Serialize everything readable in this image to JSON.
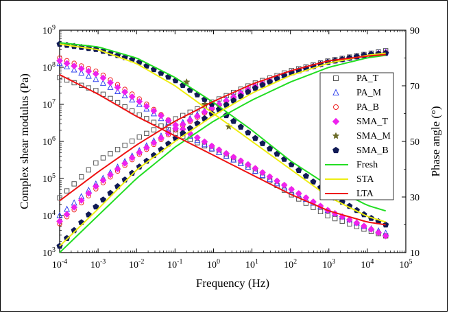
{
  "chart_data": {
    "type": "scatter",
    "title": "",
    "xlabel": "Frequency (Hz)",
    "ylabel_left": "Complex shear modulus (Pa)",
    "ylabel_right": "Phase angle (°)",
    "x_scale": "log",
    "y_left_scale": "log",
    "xlim": [
      0.0001,
      100000
    ],
    "ylim_left": [
      1000,
      1000000000
    ],
    "ylim_right": [
      10,
      90
    ],
    "x_ticks": [
      {
        "base": "10",
        "exp": "-4"
      },
      {
        "base": "10",
        "exp": "-3"
      },
      {
        "base": "10",
        "exp": "-2"
      },
      {
        "base": "10",
        "exp": "-1"
      },
      {
        "base": "10",
        "exp": "0"
      },
      {
        "base": "10",
        "exp": "1"
      },
      {
        "base": "10",
        "exp": "2"
      },
      {
        "base": "10",
        "exp": "3"
      },
      {
        "base": "10",
        "exp": "4"
      },
      {
        "base": "10",
        "exp": "5"
      }
    ],
    "y_left_ticks": [
      {
        "base": "10",
        "exp": "3"
      },
      {
        "base": "10",
        "exp": "4"
      },
      {
        "base": "10",
        "exp": "5"
      },
      {
        "base": "10",
        "exp": "6"
      },
      {
        "base": "10",
        "exp": "7"
      },
      {
        "base": "10",
        "exp": "8"
      },
      {
        "base": "10",
        "exp": "9"
      }
    ],
    "y_right_ticks": [
      "10",
      "30",
      "50",
      "70",
      "90"
    ],
    "grid": false,
    "legend_position": "right-inside",
    "series": [
      {
        "name": "PA_T",
        "marker": "square-open",
        "color": "#555555",
        "modulus": {
          "x": [
            0.0001,
            0.001,
            0.01,
            0.1,
            1,
            10,
            100,
            1000,
            10000,
            30000
          ],
          "y": [
            30000,
            300000,
            1200000,
            4000000,
            12000000,
            35000000,
            80000000,
            150000000,
            230000000,
            280000000
          ]
        },
        "phase": {
          "x": [
            0.0001,
            0.001,
            0.01,
            0.1,
            1,
            10,
            100,
            1000,
            10000,
            30000
          ],
          "y": [
            73,
            68,
            60,
            53,
            47,
            40,
            31,
            23,
            18,
            16
          ]
        }
      },
      {
        "name": "PA_M",
        "marker": "triangle-open",
        "color": "#3344ee",
        "modulus": {
          "x": [
            0.0001,
            0.001,
            0.01,
            0.1,
            1,
            10,
            100,
            1000,
            10000,
            30000
          ],
          "y": [
            10000,
            80000,
            500000,
            2500000,
            9000000,
            30000000,
            70000000,
            140000000,
            220000000,
            260000000
          ]
        },
        "phase": {
          "x": [
            0.0001,
            0.001,
            0.01,
            0.1,
            1,
            10,
            100,
            1000,
            10000,
            30000
          ],
          "y": [
            78,
            72,
            64,
            55,
            47,
            40,
            32,
            25,
            19,
            17
          ]
        }
      },
      {
        "name": "PA_B",
        "marker": "circle-open",
        "color": "#ee2222",
        "modulus": {
          "x": [
            0.0001,
            0.001,
            0.01,
            0.1,
            1,
            10,
            100,
            1000,
            10000,
            30000
          ],
          "y": [
            6000,
            60000,
            400000,
            2000000,
            8000000,
            28000000,
            70000000,
            140000000,
            220000000,
            250000000
          ]
        },
        "phase": {
          "x": [
            0.0001,
            0.001,
            0.01,
            0.1,
            1,
            10,
            100,
            1000,
            10000,
            30000
          ],
          "y": [
            80,
            75,
            66,
            56,
            48,
            41,
            33,
            25,
            19,
            16
          ]
        }
      },
      {
        "name": "SMA_T",
        "marker": "diamond-filled",
        "color": "#ee22ee",
        "modulus": {
          "x": [
            0.0001,
            0.001,
            0.01,
            0.1,
            1,
            10,
            100,
            1000,
            10000,
            30000
          ],
          "y": [
            7000,
            70000,
            450000,
            2200000,
            8500000,
            28000000,
            70000000,
            140000000,
            220000000,
            250000000
          ]
        },
        "phase": {
          "x": [
            0.0001,
            0.001,
            0.01,
            0.1,
            1,
            10,
            100,
            1000,
            10000,
            30000
          ],
          "y": [
            79,
            74,
            65,
            56,
            48,
            41,
            33,
            25,
            19,
            16
          ]
        }
      },
      {
        "name": "SMA_M",
        "marker": "star-filled",
        "color": "#6b6b28",
        "modulus": {
          "x": [
            0.2,
            0.6,
            2.5
          ],
          "y": [
            40000000,
            10000000,
            2500000
          ]
        },
        "phase": {
          "x": [],
          "y": []
        }
      },
      {
        "name": "SMA_B",
        "marker": "pentagon-filled",
        "color": "#101a55",
        "modulus": {
          "x": [
            0.0001,
            0.001,
            0.01,
            0.1,
            1,
            10,
            100,
            1000,
            10000,
            30000
          ],
          "y": [
            1500,
            20000,
            180000,
            1200000,
            6000000,
            25000000,
            70000000,
            140000000,
            220000000,
            240000000
          ]
        },
        "phase": {
          "x": [
            0.0001,
            0.001,
            0.01,
            0.1,
            1,
            10,
            100,
            1000,
            10000,
            30000
          ],
          "y": [
            85,
            83,
            79,
            72,
            63,
            52,
            42,
            31,
            23,
            20
          ]
        }
      }
    ],
    "lines": [
      {
        "name": "Fresh",
        "color": "#22dd22",
        "modulus": {
          "x": [
            0.0001,
            0.001,
            0.01,
            0.1,
            1,
            10,
            100,
            1000,
            10000,
            30000
          ],
          "y": [
            1000,
            10000,
            100000,
            700000,
            3500000,
            13000000,
            40000000,
            100000000,
            180000000,
            210000000
          ]
        },
        "phase": {
          "x": [
            0.0001,
            0.001,
            0.01,
            0.1,
            1,
            10,
            100,
            1000,
            10000,
            30000
          ],
          "y": [
            85.5,
            84,
            80,
            73,
            64,
            54,
            43,
            34,
            27,
            25
          ]
        }
      },
      {
        "name": "STA",
        "color": "#eeee11",
        "modulus": {
          "x": [
            0.0001,
            0.001,
            0.01,
            0.1,
            1,
            10,
            100,
            1000,
            10000,
            30000
          ],
          "y": [
            1500,
            15000,
            170000,
            1000000,
            5000000,
            20000000,
            60000000,
            130000000,
            210000000,
            240000000
          ]
        },
        "phase": {
          "x": [
            0.0001,
            0.001,
            0.01,
            0.1,
            1,
            10,
            100,
            1000,
            10000,
            30000
          ],
          "y": [
            85,
            83,
            78,
            70,
            60,
            50,
            40,
            30,
            23,
            21
          ]
        }
      },
      {
        "name": "LTA",
        "color": "#ee1111",
        "modulus": {
          "x": [
            0.0001,
            0.001,
            0.01,
            0.1,
            1,
            10,
            100,
            1000,
            10000,
            30000
          ],
          "y": [
            25000,
            150000,
            800000,
            3500000,
            12000000,
            35000000,
            80000000,
            150000000,
            200000000,
            220000000
          ]
        },
        "phase": {
          "x": [
            0.0001,
            0.001,
            0.01,
            0.1,
            1,
            10,
            100,
            1000,
            10000,
            30000
          ],
          "y": [
            74,
            67,
            59,
            52,
            45,
            38,
            31,
            25,
            21,
            20
          ]
        }
      }
    ]
  }
}
